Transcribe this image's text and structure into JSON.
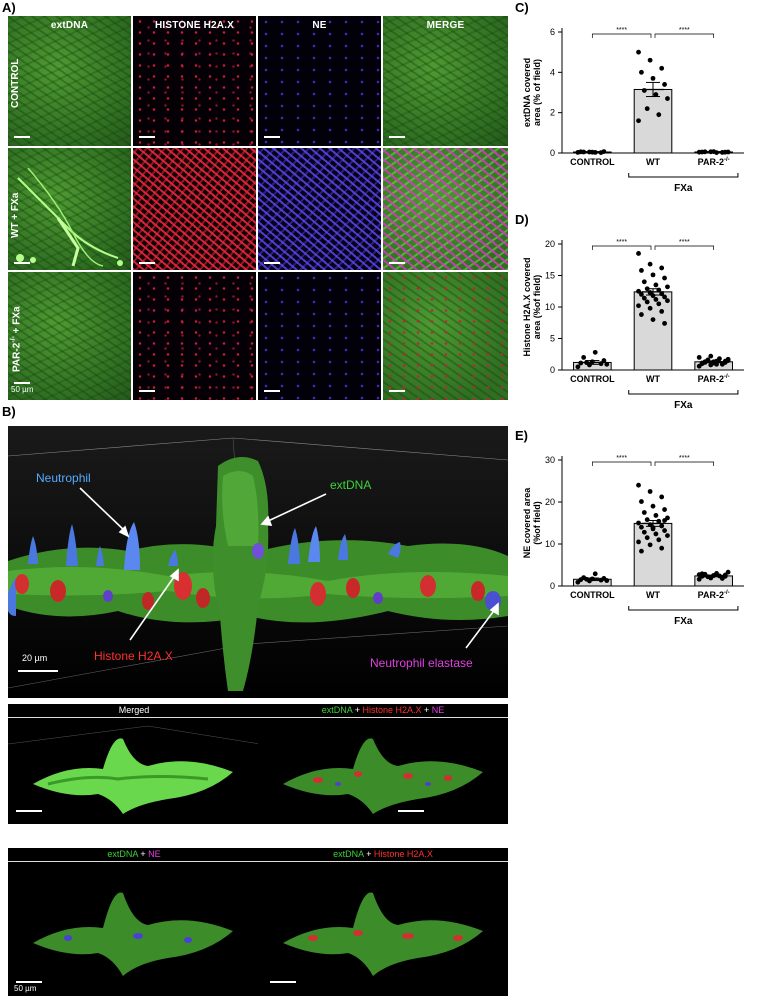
{
  "panel_letters": {
    "a": "A)",
    "b": "B)",
    "c": "C)",
    "d": "D)",
    "e": "E)"
  },
  "panelA": {
    "columns": [
      "extDNA",
      "HISTONE H2A.X",
      "NE",
      "MERGE"
    ],
    "rows": [
      "CONTROL",
      "WT + FXa",
      "PAR-2",
      "-/-",
      " + FXa"
    ],
    "scale": "50 µm"
  },
  "panelB": {
    "labels": {
      "neutrophil": "Neutrophil",
      "extdna": "extDNA",
      "histone": "Histone H2A.X",
      "elastase": "Neutrophil elastase"
    },
    "scale_main": "20 µm",
    "scale_sub": "50 µm",
    "sub_titles": {
      "merged": "Merged",
      "all": [
        "extDNA",
        " + ",
        "Histone H2A.X",
        " + ",
        "NE"
      ],
      "ext_ne": [
        "extDNA",
        " + ",
        "NE"
      ],
      "ext_hist": [
        "extDNA",
        " + ",
        "Histone H2A.X"
      ]
    },
    "colors": {
      "green": "#3cd23c",
      "red": "#ff3030",
      "magenta": "#e040e0"
    }
  },
  "chart_data": [
    {
      "id": "C",
      "type": "bar",
      "categories": [
        "CONTROL",
        "WT",
        "PAR-2"
      ],
      "superscript": "-/-",
      "values": [
        0.05,
        3.15,
        0.05
      ],
      "errors": [
        0.02,
        0.35,
        0.02
      ],
      "points": [
        [
          0.03,
          0.05,
          0.02,
          0.06,
          0.04,
          0.07,
          0.05,
          0.03
        ],
        [
          5.0,
          4.6,
          4.2,
          4.0,
          3.7,
          3.4,
          3.1,
          2.9,
          2.7,
          2.2,
          1.9,
          1.6
        ],
        [
          0.04,
          0.06,
          0.03,
          0.05,
          0.07,
          0.04,
          0.06,
          0.02,
          0.05
        ]
      ],
      "ylabel": [
        "extDNA covered",
        "area (% of field)"
      ],
      "yticks": [
        0,
        2,
        4,
        6
      ],
      "ylim": [
        0,
        6
      ],
      "significance": [
        "****",
        "****"
      ],
      "group_label": "FXa"
    },
    {
      "id": "D",
      "type": "bar",
      "categories": [
        "CONTROL",
        "WT",
        "PAR-2"
      ],
      "superscript": "-/-",
      "values": [
        1.2,
        12.4,
        1.3
      ],
      "errors": [
        0.3,
        0.5,
        0.15
      ],
      "points": [
        [
          0.5,
          0.8,
          1.0,
          1.1,
          1.3,
          1.5,
          2.0,
          2.8,
          0.9,
          1.2
        ],
        [
          18.5,
          16.8,
          16.2,
          15.8,
          15.1,
          14.6,
          14.0,
          13.5,
          13.2,
          12.9,
          12.7,
          12.5,
          12.3,
          12.1,
          12.0,
          11.8,
          11.6,
          11.4,
          11.2,
          11.0,
          10.8,
          10.5,
          10.2,
          9.8,
          9.3,
          8.8,
          8.0,
          7.4
        ],
        [
          0.6,
          0.8,
          0.9,
          1.0,
          1.1,
          1.2,
          1.3,
          1.4,
          1.5,
          1.6,
          1.8,
          2.0,
          2.2,
          1.0,
          1.1,
          1.3,
          1.4,
          1.2,
          0.9,
          1.7
        ]
      ],
      "ylabel": [
        "Histone H2A.X covered",
        "area (%of field)"
      ],
      "yticks": [
        0,
        5,
        10,
        15,
        20
      ],
      "ylim": [
        0,
        20
      ],
      "significance": [
        "****",
        "****"
      ],
      "group_label": "FXa"
    },
    {
      "id": "E",
      "type": "bar",
      "categories": [
        "CONTROL",
        "WT",
        "PAR-2"
      ],
      "superscript": "-/-",
      "values": [
        1.6,
        14.9,
        2.4
      ],
      "errors": [
        0.3,
        0.7,
        0.2
      ],
      "points": [
        [
          0.9,
          1.2,
          1.4,
          1.5,
          1.7,
          1.8,
          2.0,
          2.9,
          1.3,
          1.6
        ],
        [
          24.0,
          22.5,
          21.2,
          20.1,
          19.0,
          18.2,
          17.5,
          16.8,
          16.2,
          15.8,
          15.4,
          15.0,
          14.6,
          14.3,
          14.0,
          13.6,
          13.2,
          12.8,
          12.4,
          12.0,
          11.5,
          11.0,
          10.5,
          9.8,
          9.0,
          8.3,
          13.9,
          15.6
        ],
        [
          1.6,
          1.9,
          2.1,
          2.3,
          2.5,
          2.6,
          2.8,
          3.0,
          3.3,
          2.2,
          2.4,
          2.7,
          2.0,
          1.8,
          2.9,
          2.5,
          2.3,
          2.6
        ]
      ],
      "ylabel": [
        "NE covered area",
        "(%of field)"
      ],
      "yticks": [
        0,
        10,
        20,
        30
      ],
      "ylim": [
        0,
        30
      ],
      "significance": [
        "****",
        "****"
      ],
      "group_label": "FXa"
    }
  ]
}
